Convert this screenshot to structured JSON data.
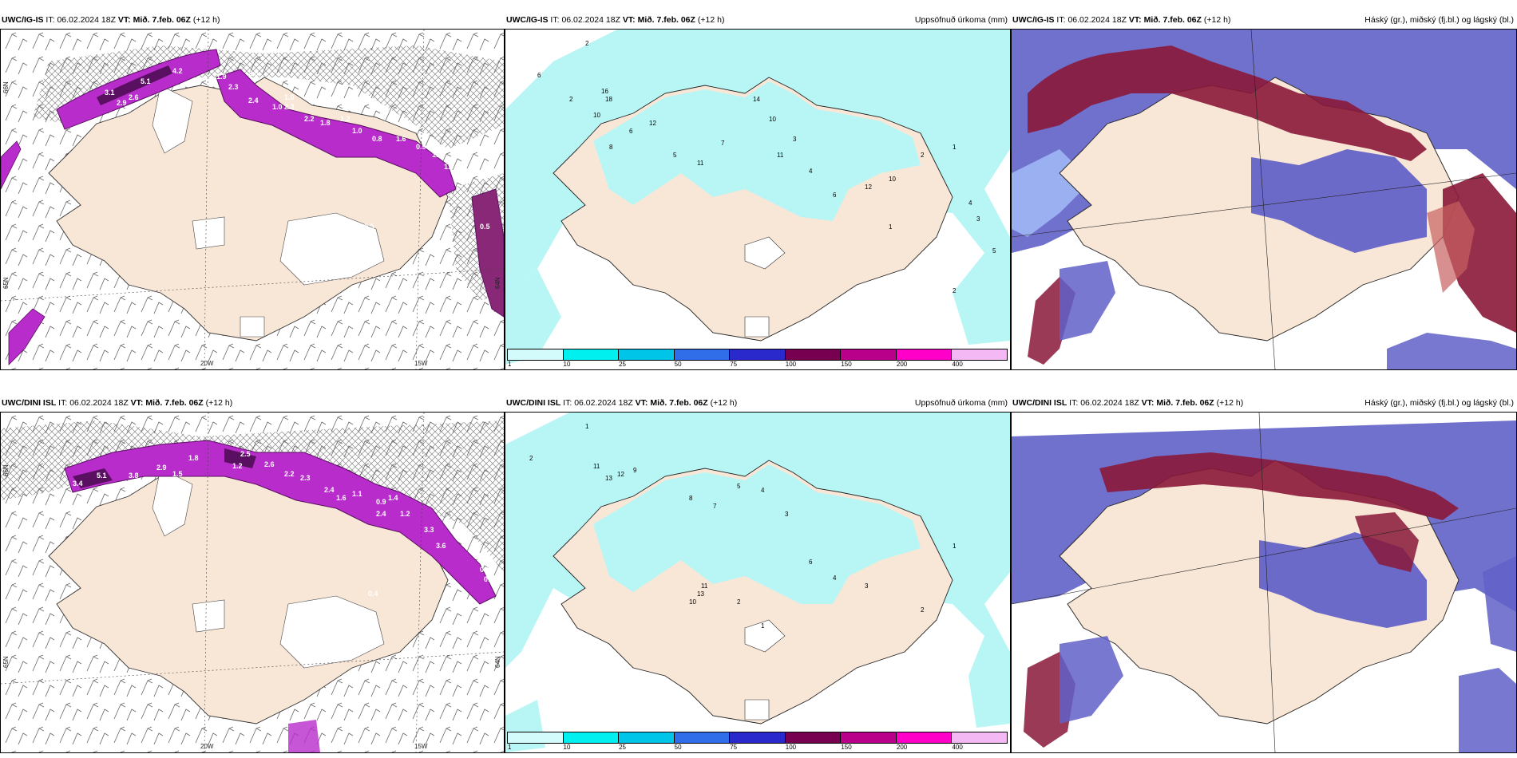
{
  "panels": [
    {
      "id": "r1c1",
      "model": "UWC/IG-IS",
      "it_label": "IT:",
      "it_value": "06.02.2024 18Z",
      "vt_label": "VT:",
      "vt_value": "Mið. 7.feb. 06Z",
      "lead": "(+12 h)",
      "right_title": "",
      "longitude_ticks": [
        "20W",
        "15W"
      ],
      "latitude_ticks": [
        "66N",
        "65N",
        "64N"
      ],
      "value_labels": [
        "4.2",
        "5.1",
        "3.1",
        "2.9",
        "2.6",
        "1.9",
        "2.3",
        "2.5",
        "1.0",
        "1.0",
        "2.4",
        "2.3",
        "2.2",
        "1.8",
        "1.2",
        "1.0",
        "0.8",
        "1.6",
        "0.9",
        "1.5",
        "1.0",
        "0.5",
        "0.5"
      ]
    },
    {
      "id": "r1c2",
      "model": "UWC/IG-IS",
      "it_label": "IT:",
      "it_value": "06.02.2024 18Z",
      "vt_label": "VT:",
      "vt_value": "Mið. 7.feb. 06Z",
      "lead": "(+12 h)",
      "right_title": "Uppsöfnuð úrkoma (mm)",
      "point_values": [
        "2",
        "6",
        "2",
        "16",
        "18",
        "10",
        "6",
        "12",
        "8",
        "5",
        "11",
        "7",
        "14",
        "10",
        "3",
        "11",
        "4",
        "6",
        "12",
        "10",
        "2",
        "1",
        "4",
        "3",
        "5",
        "2",
        "1"
      ]
    },
    {
      "id": "r1c3",
      "model": "UWC/IG-IS",
      "it_label": "IT:",
      "it_value": "06.02.2024 18Z",
      "vt_label": "VT:",
      "vt_value": "Mið. 7.feb. 06Z",
      "lead": "(+12 h)",
      "right_title": "Háský (gr.), miðský (fj.bl.) og lágský (bl.)"
    },
    {
      "id": "r2c1",
      "model": "UWC/DINI ISL",
      "it_label": "IT:",
      "it_value": "06.02.2024 18Z",
      "vt_label": "VT:",
      "vt_value": "Mið. 7.feb. 06Z",
      "lead": "(+12 h)",
      "right_title": "",
      "longitude_ticks": [
        "20W",
        "15W"
      ],
      "latitude_ticks": [
        "66N",
        "65N",
        "64N"
      ],
      "value_labels": [
        "3.4",
        "5.1",
        "3.8",
        "2.9",
        "1.5",
        "1.8",
        "2.5",
        "1.2",
        "2.6",
        "2.2",
        "2.3",
        "2.4",
        "1.6",
        "1.1",
        "0.9",
        "2.4",
        "1.4",
        "1.2",
        "3.3",
        "3.6",
        "0.8",
        "0.9",
        "0.4"
      ]
    },
    {
      "id": "r2c2",
      "model": "UWC/DINI ISL",
      "it_label": "IT:",
      "it_value": "06.02.2024 18Z",
      "vt_label": "VT:",
      "vt_value": "Mið. 7.feb. 06Z",
      "lead": "(+12 h)",
      "right_title": "Uppsöfnuð úrkoma (mm)",
      "point_values": [
        "1",
        "2",
        "11",
        "13",
        "12",
        "9",
        "8",
        "7",
        "5",
        "4",
        "3",
        "13",
        "11",
        "10",
        "2",
        "1",
        "6",
        "4",
        "3",
        "2",
        "1"
      ]
    },
    {
      "id": "r2c3",
      "model": "UWC/DINI ISL",
      "it_label": "IT:",
      "it_value": "06.02.2024 18Z",
      "vt_label": "VT:",
      "vt_value": "Mið. 7.feb. 06Z",
      "lead": "(+12 h)",
      "right_title": "Háský (gr.), miðský (fj.bl.) og lágský (bl.)"
    }
  ],
  "precip_legend": {
    "labels": [
      "1",
      "10",
      "25",
      "50",
      "75",
      "100",
      "150",
      "200",
      "400"
    ],
    "colors": [
      "#d4fbfb",
      "#00f0f0",
      "#00c4e8",
      "#2f6ee8",
      "#2a2acc",
      "#780050",
      "#b8008a",
      "#ff00c8",
      "#f4b8f4"
    ]
  },
  "colors": {
    "land": "#f8e6d6",
    "sea": "#ffffff",
    "precip_light": "#b8f6f6",
    "snow_purple": "#b82ccc",
    "snow_dark": "#5a1060",
    "cloud_high": "#8a1838",
    "cloud_mid": "#6060c8",
    "cloud_low": "#9ab0f0"
  }
}
